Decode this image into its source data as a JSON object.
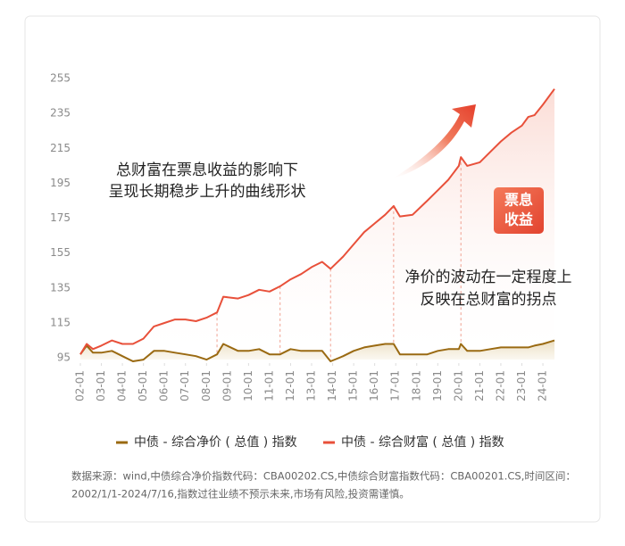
{
  "chart_data": {
    "type": "line",
    "x": [
      2002.0,
      2002.3,
      2002.6,
      2003.0,
      2003.5,
      2004.0,
      2004.5,
      2005.0,
      2005.5,
      2006.0,
      2006.5,
      2007.0,
      2007.5,
      2008.0,
      2008.5,
      2008.8,
      2009.5,
      2010.0,
      2010.5,
      2011.0,
      2011.5,
      2012.0,
      2012.5,
      2013.0,
      2013.5,
      2013.9,
      2014.5,
      2015.0,
      2015.5,
      2016.0,
      2016.5,
      2016.9,
      2017.2,
      2017.8,
      2018.5,
      2019.0,
      2019.5,
      2020.0,
      2020.1,
      2020.4,
      2021.0,
      2021.5,
      2022.0,
      2022.5,
      2023.0,
      2023.3,
      2023.6,
      2024.0,
      2024.55
    ],
    "series": [
      {
        "name": "中债 - 综合净价 ( 总值 ) 指数",
        "color": "#9a6a12",
        "values": [
          97,
          102,
          98,
          98,
          99,
          96,
          93,
          94,
          99,
          99,
          98,
          97,
          96,
          94,
          97,
          103,
          99,
          99,
          100,
          97,
          97,
          100,
          99,
          99,
          99,
          93,
          96,
          99,
          101,
          102,
          103,
          103,
          97,
          97,
          97,
          99,
          100,
          100,
          103,
          99,
          99,
          100,
          101,
          101,
          101,
          101,
          102,
          103,
          105
        ]
      },
      {
        "name": "中债 - 综合财富 ( 总值 ) 指数",
        "color": "#e8503a",
        "values": [
          97,
          103,
          100,
          102,
          105,
          103,
          103,
          106,
          113,
          115,
          117,
          117,
          116,
          118,
          121,
          130,
          129,
          131,
          134,
          133,
          136,
          140,
          143,
          147,
          150,
          146,
          153,
          160,
          167,
          172,
          177,
          182,
          176,
          177,
          185,
          191,
          197,
          205,
          210,
          205,
          207,
          213,
          219,
          224,
          228,
          233,
          234,
          240,
          249
        ]
      }
    ],
    "xlim": [
      2002,
      2024.55
    ],
    "xticks": [
      {
        "value": 2002,
        "label": "02-01"
      },
      {
        "value": 2003,
        "label": "03-01"
      },
      {
        "value": 2004,
        "label": "04-01"
      },
      {
        "value": 2005,
        "label": "05-01"
      },
      {
        "value": 2006,
        "label": "06-01"
      },
      {
        "value": 2007,
        "label": "07-01"
      },
      {
        "value": 2008,
        "label": "08-01"
      },
      {
        "value": 2009,
        "label": "09-01"
      },
      {
        "value": 2010,
        "label": "10-01"
      },
      {
        "value": 2011,
        "label": "11-01"
      },
      {
        "value": 2012,
        "label": "12-01"
      },
      {
        "value": 2013,
        "label": "13-01"
      },
      {
        "value": 2014,
        "label": "14-01"
      },
      {
        "value": 2015,
        "label": "15-01"
      },
      {
        "value": 2016,
        "label": "16-01"
      },
      {
        "value": 2017,
        "label": "17-01"
      },
      {
        "value": 2018,
        "label": "18-01"
      },
      {
        "value": 2019,
        "label": "19-01"
      },
      {
        "value": 2020,
        "label": "20-01"
      },
      {
        "value": 2021,
        "label": "21-01"
      },
      {
        "value": 2022,
        "label": "22-01"
      },
      {
        "value": 2023,
        "label": "23-01"
      },
      {
        "value": 2024,
        "label": "24-01"
      }
    ],
    "ylim": [
      92,
      255
    ],
    "yticks": [
      95,
      115,
      135,
      155,
      175,
      195,
      215,
      235,
      255
    ],
    "annotations": [
      [
        "总财富在票息收益的影响下",
        "呈现长期稳步上升的曲线形状"
      ],
      [
        "净价的波动在一定程度上",
        "反映在总财富的拐点"
      ],
      [
        "票息",
        "收益"
      ]
    ],
    "note": [
      "数据来源：wind,中债综合净价指数代码：CBA00202.CS,中债综合财富指数代码：CBA00201.CS,时间区间：",
      "2002/1/1-2024/7/16,指数过往业绩不预示未来,市场有风险,投资需谨慎。"
    ]
  }
}
